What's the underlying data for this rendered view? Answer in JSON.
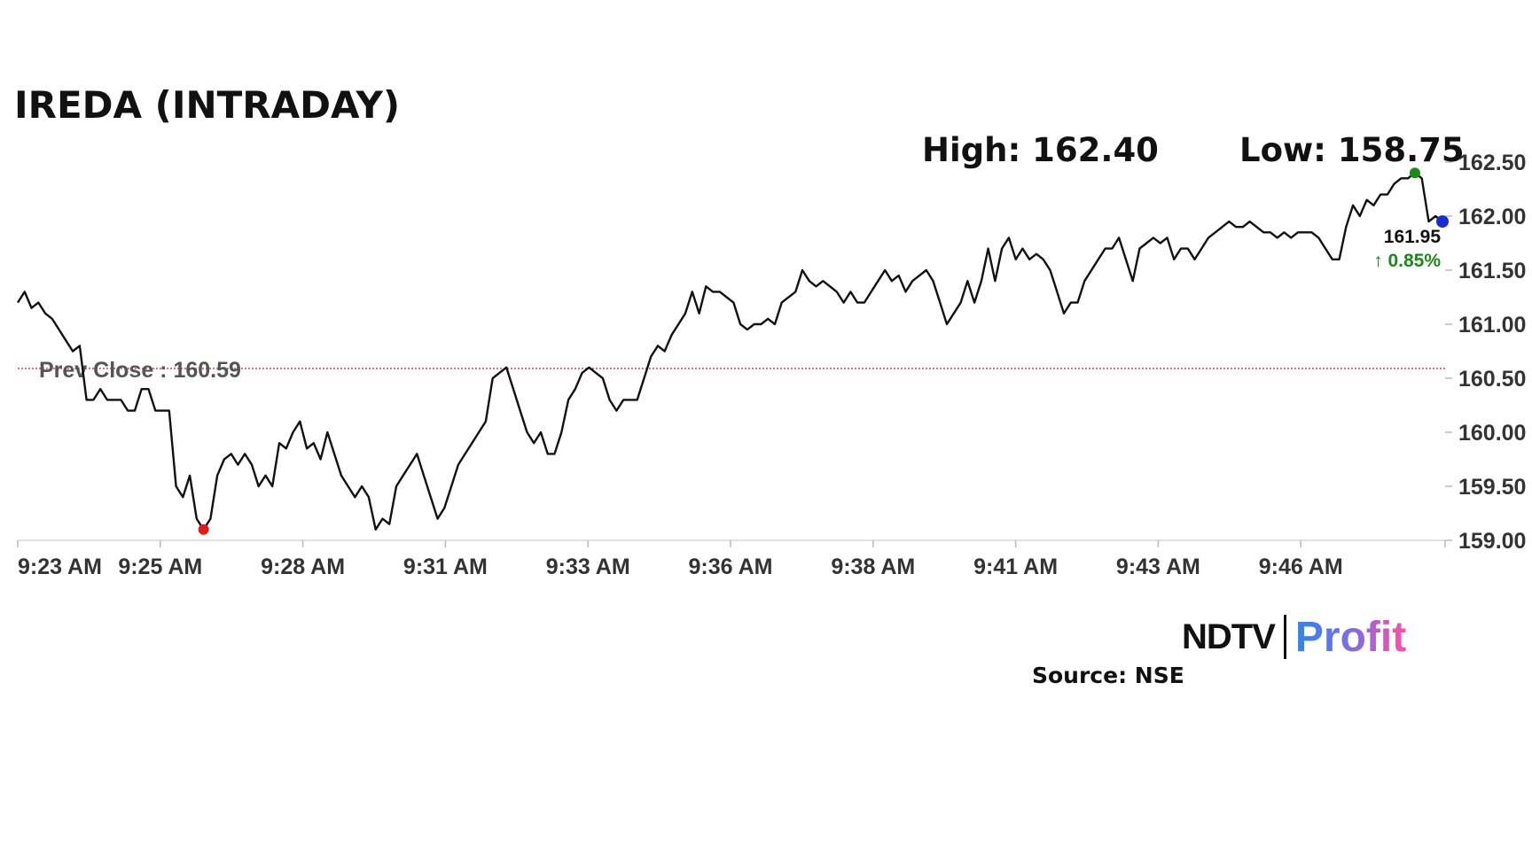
{
  "chart_data": {
    "type": "line",
    "title": "IREDA (INTRADAY)",
    "ylim": [
      159.0,
      162.5
    ],
    "yticks": [
      "162.50",
      "162.00",
      "161.50",
      "161.00",
      "160.50",
      "160.00",
      "159.50",
      "159.00"
    ],
    "xticks": [
      "9:23 AM",
      "9:25 AM",
      "9:28 AM",
      "9:31 AM",
      "9:33 AM",
      "9:36 AM",
      "9:38 AM",
      "9:41 AM",
      "9:43 AM",
      "9:46 AM"
    ],
    "prev_close": {
      "label": "Prev Close : 160.59",
      "value": 160.59,
      "color": "#cc2222"
    },
    "high_label": "High: 162.40",
    "low_label": "Low: 158.75",
    "last_price": "161.95",
    "change": "↑ 0.85%",
    "marker_colors": {
      "high": "#1a8a1a",
      "low": "#e01b1b",
      "last": "#1a2bd1"
    },
    "colors": {
      "line": "#111111",
      "change": "#1a8a1a"
    },
    "series": [
      {
        "points": [
          [
            0,
            161.2
          ],
          [
            1,
            161.3
          ],
          [
            2,
            161.15
          ],
          [
            3,
            161.2
          ],
          [
            4,
            161.1
          ],
          [
            5,
            161.05
          ],
          [
            6,
            160.95
          ],
          [
            7,
            160.85
          ],
          [
            8,
            160.75
          ],
          [
            9,
            160.8
          ],
          [
            10,
            160.3
          ],
          [
            11,
            160.3
          ],
          [
            12,
            160.4
          ],
          [
            13,
            160.3
          ],
          [
            14,
            160.3
          ],
          [
            15,
            160.3
          ],
          [
            16,
            160.2
          ],
          [
            17,
            160.2
          ],
          [
            18,
            160.4
          ],
          [
            19,
            160.4
          ],
          [
            20,
            160.2
          ],
          [
            21,
            160.2
          ],
          [
            22,
            160.2
          ],
          [
            23,
            159.5
          ],
          [
            24,
            159.4
          ],
          [
            25,
            159.6
          ],
          [
            26,
            159.2
          ],
          [
            27,
            159.1
          ],
          [
            28,
            159.2
          ],
          [
            29,
            159.6
          ],
          [
            30,
            159.75
          ],
          [
            31,
            159.8
          ],
          [
            32,
            159.7
          ],
          [
            33,
            159.8
          ],
          [
            34,
            159.7
          ],
          [
            35,
            159.5
          ],
          [
            36,
            159.6
          ],
          [
            37,
            159.5
          ],
          [
            38,
            159.9
          ],
          [
            39,
            159.85
          ],
          [
            40,
            160.0
          ],
          [
            41,
            160.1
          ],
          [
            42,
            159.85
          ],
          [
            43,
            159.9
          ],
          [
            44,
            159.75
          ],
          [
            45,
            160.0
          ],
          [
            46,
            159.8
          ],
          [
            47,
            159.6
          ],
          [
            48,
            159.5
          ],
          [
            49,
            159.4
          ],
          [
            50,
            159.5
          ],
          [
            51,
            159.4
          ],
          [
            52,
            159.1
          ],
          [
            53,
            159.2
          ],
          [
            54,
            159.15
          ],
          [
            55,
            159.5
          ],
          [
            56,
            159.6
          ],
          [
            57,
            159.7
          ],
          [
            58,
            159.8
          ],
          [
            59,
            159.6
          ],
          [
            60,
            159.4
          ],
          [
            61,
            159.2
          ],
          [
            62,
            159.3
          ],
          [
            63,
            159.5
          ],
          [
            64,
            159.7
          ],
          [
            65,
            159.8
          ],
          [
            66,
            159.9
          ],
          [
            67,
            160.0
          ],
          [
            68,
            160.1
          ],
          [
            69,
            160.5
          ],
          [
            70,
            160.55
          ],
          [
            71,
            160.6
          ],
          [
            72,
            160.4
          ],
          [
            73,
            160.2
          ],
          [
            74,
            160.0
          ],
          [
            75,
            159.9
          ],
          [
            76,
            160.0
          ],
          [
            77,
            159.8
          ],
          [
            78,
            159.8
          ],
          [
            79,
            160.0
          ],
          [
            80,
            160.3
          ],
          [
            81,
            160.4
          ],
          [
            82,
            160.55
          ],
          [
            83,
            160.6
          ],
          [
            84,
            160.55
          ],
          [
            85,
            160.5
          ],
          [
            86,
            160.3
          ],
          [
            87,
            160.2
          ],
          [
            88,
            160.3
          ],
          [
            89,
            160.3
          ],
          [
            90,
            160.3
          ],
          [
            91,
            160.5
          ],
          [
            92,
            160.7
          ],
          [
            93,
            160.8
          ],
          [
            94,
            160.75
          ],
          [
            95,
            160.9
          ],
          [
            96,
            161.0
          ],
          [
            97,
            161.1
          ],
          [
            98,
            161.3
          ],
          [
            99,
            161.1
          ],
          [
            100,
            161.35
          ],
          [
            101,
            161.3
          ],
          [
            102,
            161.3
          ],
          [
            103,
            161.25
          ],
          [
            104,
            161.2
          ],
          [
            105,
            161.0
          ],
          [
            106,
            160.95
          ],
          [
            107,
            161.0
          ],
          [
            108,
            161.0
          ],
          [
            109,
            161.05
          ],
          [
            110,
            161.0
          ],
          [
            111,
            161.2
          ],
          [
            112,
            161.25
          ],
          [
            113,
            161.3
          ],
          [
            114,
            161.5
          ],
          [
            115,
            161.4
          ],
          [
            116,
            161.35
          ],
          [
            117,
            161.4
          ],
          [
            118,
            161.35
          ],
          [
            119,
            161.3
          ],
          [
            120,
            161.2
          ],
          [
            121,
            161.3
          ],
          [
            122,
            161.2
          ],
          [
            123,
            161.2
          ],
          [
            124,
            161.3
          ],
          [
            125,
            161.4
          ],
          [
            126,
            161.5
          ],
          [
            127,
            161.4
          ],
          [
            128,
            161.45
          ],
          [
            129,
            161.3
          ],
          [
            130,
            161.4
          ],
          [
            131,
            161.45
          ],
          [
            132,
            161.5
          ],
          [
            133,
            161.4
          ],
          [
            134,
            161.2
          ],
          [
            135,
            161.0
          ],
          [
            136,
            161.1
          ],
          [
            137,
            161.2
          ],
          [
            138,
            161.4
          ],
          [
            139,
            161.2
          ],
          [
            140,
            161.4
          ],
          [
            141,
            161.7
          ],
          [
            142,
            161.4
          ],
          [
            143,
            161.7
          ],
          [
            144,
            161.8
          ],
          [
            145,
            161.6
          ],
          [
            146,
            161.7
          ],
          [
            147,
            161.6
          ],
          [
            148,
            161.65
          ],
          [
            149,
            161.6
          ],
          [
            150,
            161.5
          ],
          [
            151,
            161.3
          ],
          [
            152,
            161.1
          ],
          [
            153,
            161.2
          ],
          [
            154,
            161.2
          ],
          [
            155,
            161.4
          ],
          [
            156,
            161.5
          ],
          [
            157,
            161.6
          ],
          [
            158,
            161.7
          ],
          [
            159,
            161.7
          ],
          [
            160,
            161.8
          ],
          [
            161,
            161.6
          ],
          [
            162,
            161.4
          ],
          [
            163,
            161.7
          ],
          [
            164,
            161.75
          ],
          [
            165,
            161.8
          ],
          [
            166,
            161.75
          ],
          [
            167,
            161.8
          ],
          [
            168,
            161.6
          ],
          [
            169,
            161.7
          ],
          [
            170,
            161.7
          ],
          [
            171,
            161.6
          ],
          [
            172,
            161.7
          ],
          [
            173,
            161.8
          ],
          [
            174,
            161.85
          ],
          [
            175,
            161.9
          ],
          [
            176,
            161.95
          ],
          [
            177,
            161.9
          ],
          [
            178,
            161.9
          ],
          [
            179,
            161.95
          ],
          [
            180,
            161.9
          ],
          [
            181,
            161.85
          ],
          [
            182,
            161.85
          ],
          [
            183,
            161.8
          ],
          [
            184,
            161.85
          ],
          [
            185,
            161.8
          ],
          [
            186,
            161.85
          ],
          [
            187,
            161.85
          ],
          [
            188,
            161.85
          ],
          [
            189,
            161.8
          ],
          [
            190,
            161.7
          ],
          [
            191,
            161.6
          ],
          [
            192,
            161.6
          ],
          [
            193,
            161.9
          ],
          [
            194,
            162.1
          ],
          [
            195,
            162.0
          ],
          [
            196,
            162.15
          ],
          [
            197,
            162.1
          ],
          [
            198,
            162.2
          ],
          [
            199,
            162.2
          ],
          [
            200,
            162.3
          ],
          [
            201,
            162.35
          ],
          [
            202,
            162.35
          ],
          [
            203,
            162.4
          ],
          [
            204,
            162.35
          ],
          [
            205,
            161.95
          ],
          [
            206,
            162.0
          ],
          [
            207,
            161.95
          ]
        ]
      }
    ]
  },
  "source_text": "Source: NSE",
  "logo": {
    "ndtv": "NDTV",
    "profit": "Profit"
  }
}
